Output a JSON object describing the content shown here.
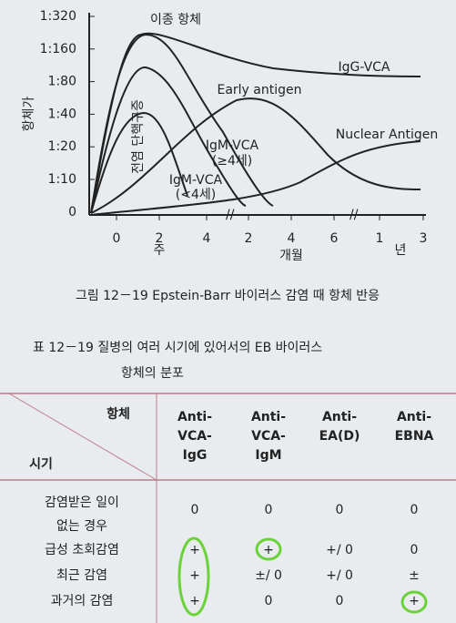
{
  "figure": {
    "y_axis_label": "항체가",
    "yticks": [
      "1:320",
      "1:160",
      "1:80",
      "1:40",
      "1:20",
      "1:10",
      "0"
    ],
    "xticks": [
      "0",
      "2",
      "4",
      "2",
      "4",
      "6",
      "1",
      "3"
    ],
    "x_units": [
      "주",
      "개월",
      "년"
    ],
    "curve_labels": {
      "heterophile": "이종 항체",
      "igg_vca": "IgG-VCA",
      "early_antigen": "Early antigen",
      "nuclear_antigen": "Nuclear Antigen",
      "igm_vca_ge4": [
        "IgM-VCA",
        "(≥4세)"
      ],
      "igm_vca_lt4": [
        "IgM-VCA",
        "(<4세)"
      ],
      "mononucleosis": "전염 단핵구증"
    }
  },
  "caption": "그림 12－19  Epstein-Barr 바이러스 감염 때 항체 반응",
  "table": {
    "title": [
      "표 12－19  질병의 여러 시기에 있어서의 EB 바이러스",
      "항체의 분포"
    ],
    "corner_top": "항체",
    "corner_bottom": "시기",
    "columns": [
      [
        "Anti-",
        "VCA-",
        "IgG"
      ],
      [
        "Anti-",
        "VCA-",
        "IgM"
      ],
      [
        "Anti-",
        "EA(D)"
      ],
      [
        "Anti-",
        "EBNA"
      ]
    ],
    "rows": [
      {
        "label": [
          "감염받은 일이",
          "없는 경우"
        ],
        "cells": [
          "0",
          "0",
          "0",
          "0"
        ]
      },
      {
        "label": [
          "급성 초회감염"
        ],
        "cells": [
          "+",
          "+",
          "+/ 0",
          "0"
        ]
      },
      {
        "label": [
          "최근 감염"
        ],
        "cells": [
          "+",
          "±/ 0",
          "+/ 0",
          "±"
        ]
      },
      {
        "label": [
          "과거의 감염"
        ],
        "cells": [
          "+",
          "0",
          "0",
          "+"
        ]
      }
    ]
  }
}
